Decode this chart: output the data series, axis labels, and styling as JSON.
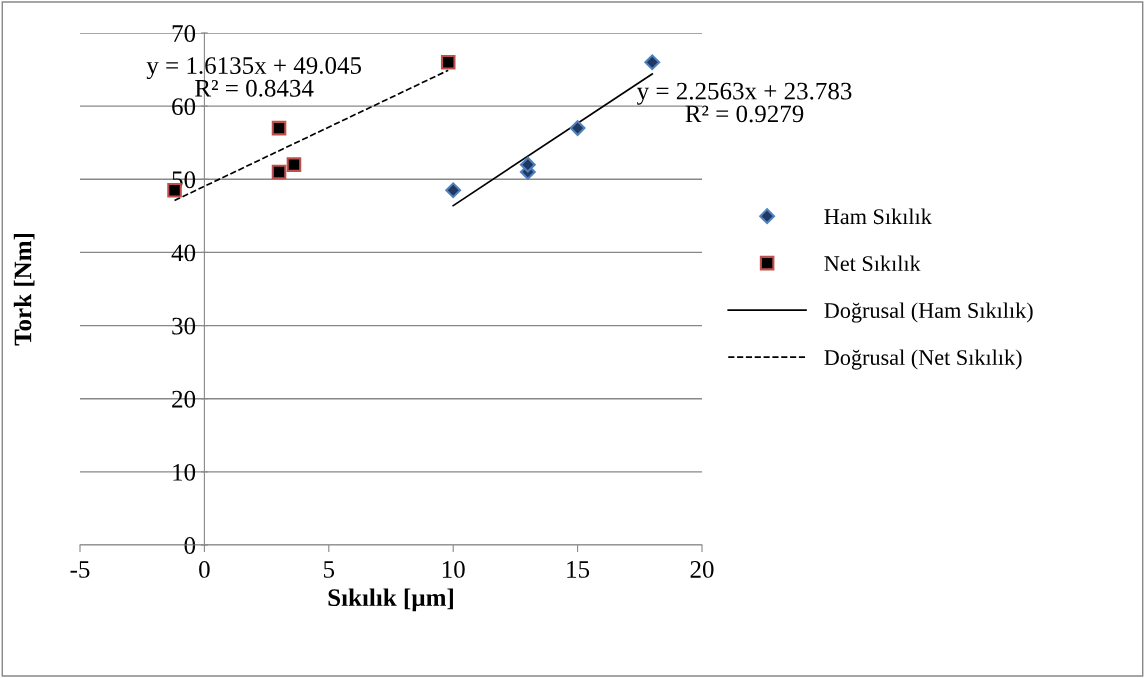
{
  "chart_data": {
    "type": "scatter",
    "xlabel": "Sıkılık [µm]",
    "ylabel": "Tork [Nm]",
    "xlim": [
      -5,
      20
    ],
    "ylim": [
      0,
      70
    ],
    "xticks": [
      -5,
      0,
      5,
      10,
      15,
      20
    ],
    "yticks": [
      0,
      10,
      20,
      30,
      40,
      50,
      60,
      70
    ],
    "grid": "y",
    "legend": "right",
    "series": [
      {
        "name": "Ham Sıkılık",
        "marker": "diamond",
        "color": "#1f3864",
        "x": [
          10,
          13,
          13,
          15,
          18
        ],
        "values": [
          48.5,
          51,
          52,
          57,
          66
        ]
      },
      {
        "name": "Net Sıkılık",
        "marker": "square",
        "color": "#000000",
        "x": [
          -1.2,
          3,
          3,
          3.6,
          9.8
        ],
        "values": [
          48.5,
          57,
          51,
          52,
          66
        ]
      },
      {
        "name": "Doğrusal (Ham Sıkılık)",
        "type": "line",
        "line_style": "solid",
        "color": "#000000",
        "x": [
          10,
          18
        ],
        "values": [
          46.4,
          64.4
        ]
      },
      {
        "name": "Doğrusal (Net Sıkılık)",
        "type": "line",
        "line_style": "dashed",
        "color": "#000000",
        "x": [
          -1.2,
          9.8
        ],
        "values": [
          47.1,
          64.9
        ]
      }
    ],
    "annotations": [
      "y = 1.6135x + 49.045\nR² = 0.8434",
      "y = 2.2563x + 23.783\nR² = 0.9279"
    ]
  }
}
